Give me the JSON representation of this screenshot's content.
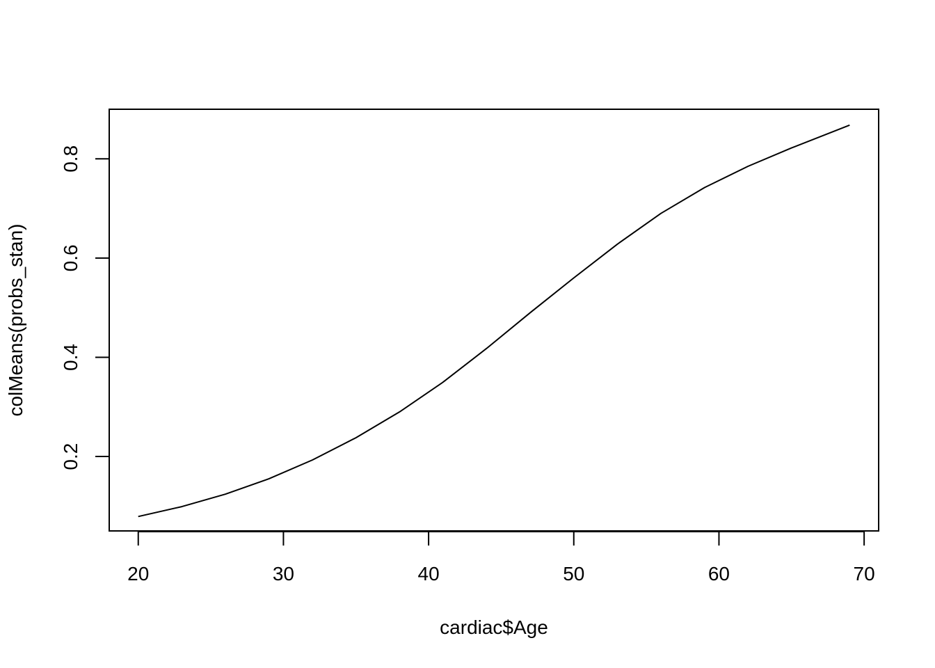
{
  "chart_data": {
    "type": "line",
    "title": "",
    "xlabel": "cardiac$Age",
    "ylabel": "colMeans(probs_stan)",
    "xlim": [
      18,
      71
    ],
    "ylim": [
      0.05,
      0.9
    ],
    "x_ticks": [
      20,
      30,
      40,
      50,
      60,
      70
    ],
    "x_tick_labels": [
      "20",
      "30",
      "40",
      "50",
      "60",
      "70"
    ],
    "y_ticks": [
      0.2,
      0.4,
      0.6,
      0.8
    ],
    "y_tick_labels": [
      "0.2",
      "0.4",
      "0.6",
      "0.8"
    ],
    "grid": false,
    "legend": "none",
    "line_color": "#000000",
    "series": [
      {
        "x": [
          20,
          23,
          26,
          29,
          32,
          35,
          38,
          41,
          44,
          47,
          50,
          53,
          56,
          59,
          62,
          65,
          69
        ],
        "y": [
          0.079,
          0.099,
          0.124,
          0.155,
          0.193,
          0.238,
          0.29,
          0.35,
          0.418,
          0.49,
          0.56,
          0.628,
          0.69,
          0.742,
          0.785,
          0.822,
          0.868
        ]
      }
    ]
  }
}
